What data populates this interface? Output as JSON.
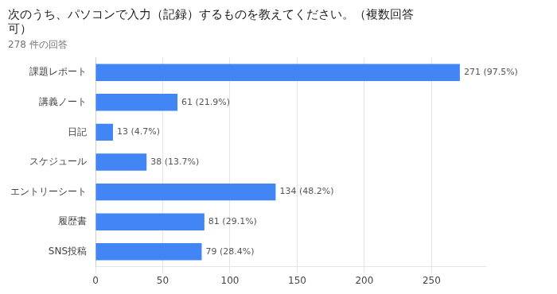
{
  "chart_data": {
    "type": "bar",
    "orientation": "horizontal",
    "title": [
      "次のうち、パソコンで入力（記録）するものを教えてください。（複数回答",
      "可）"
    ],
    "subtitle": "278 件の回答",
    "categories": [
      "課題レポート",
      "講義ノート",
      "日記",
      "スケジュール",
      "エントリーシート",
      "履歴書",
      "SNS投稿"
    ],
    "values": [
      271,
      61,
      13,
      38,
      134,
      81,
      79
    ],
    "value_labels": [
      "271 (97.5%)",
      "61 (21.9%)",
      "13 (4.7%)",
      "38 (13.7%)",
      "134 (48.2%)",
      "81 (29.1%)",
      "79 (28.4%)"
    ],
    "data_labels": true,
    "color": "#4285F4",
    "xlim": [
      0,
      290
    ],
    "xticks": [
      0,
      50,
      100,
      150,
      200,
      250
    ],
    "grid": true
  }
}
